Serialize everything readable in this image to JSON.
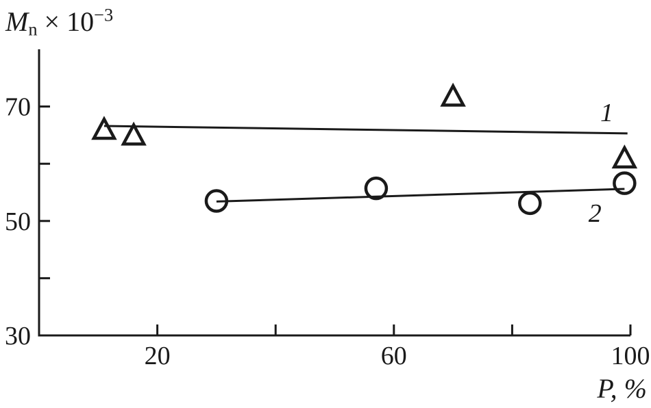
{
  "chart_data": {
    "type": "scatter",
    "title": "",
    "ylabel_parts": {
      "var": "M",
      "sub": "n",
      "mult": " × 10",
      "exp": "−3"
    },
    "xlabel_parts": {
      "var": "P",
      "rest": ", %"
    },
    "xlim": [
      0,
      100
    ],
    "ylim": [
      30,
      80
    ],
    "x_ticks_major": [
      20,
      60,
      100
    ],
    "x_ticks_minor": [
      40,
      80
    ],
    "y_ticks_major": [
      70,
      50,
      30
    ],
    "y_ticks_minor": [
      60,
      40
    ],
    "grid": false,
    "legend_position": "inline-labels",
    "axis_color": "#1a1a1a",
    "background": "#ffffff",
    "series": [
      {
        "name": "1",
        "label": "1",
        "marker": "triangle",
        "points": [
          [
            11,
            66
          ],
          [
            16,
            65
          ],
          [
            70,
            71.8
          ],
          [
            99,
            61
          ]
        ],
        "trend_line": [
          [
            11,
            66.6
          ],
          [
            99.5,
            65.3
          ]
        ],
        "label_pos": [
          96,
          69
        ]
      },
      {
        "name": "2",
        "label": "2",
        "marker": "circle",
        "points": [
          [
            30,
            53.5
          ],
          [
            57,
            55.7
          ],
          [
            83,
            53.1
          ],
          [
            99,
            56.6
          ]
        ],
        "trend_line": [
          [
            30,
            53.4
          ],
          [
            99,
            55.6
          ]
        ],
        "label_pos": [
          94,
          51.4
        ]
      }
    ]
  }
}
